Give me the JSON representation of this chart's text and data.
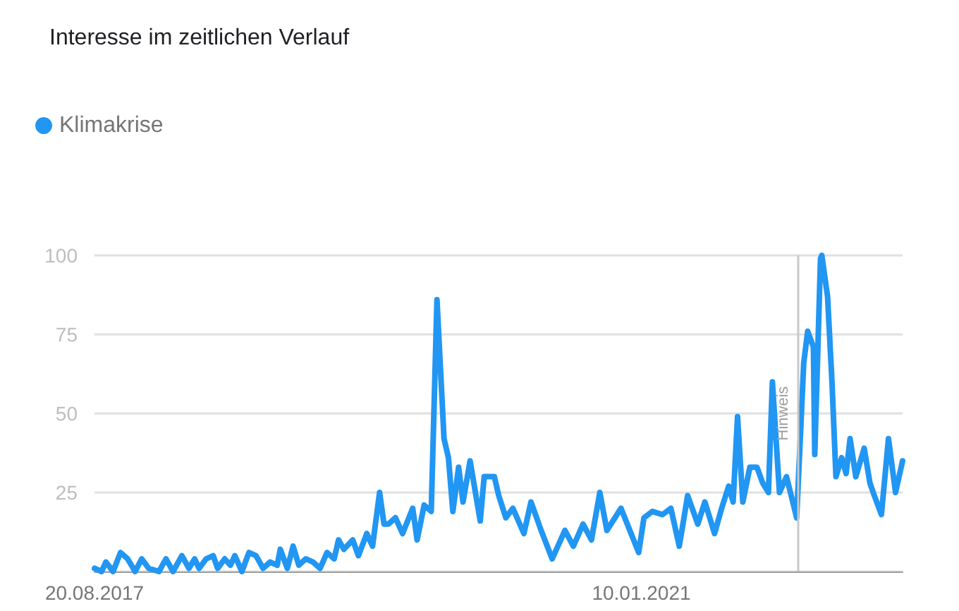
{
  "chart_data": {
    "type": "line",
    "title": "Interesse im zeitlichen Verlauf",
    "x": [
      "2017-08-20",
      "2017-09-05",
      "2017-09-15",
      "2017-10-01",
      "2017-10-18",
      "2017-11-03",
      "2017-11-20",
      "2017-12-05",
      "2017-12-21",
      "2018-01-13",
      "2018-01-29",
      "2018-02-14",
      "2018-03-06",
      "2018-03-22",
      "2018-04-04",
      "2018-04-14",
      "2018-04-30",
      "2018-05-16",
      "2018-05-26",
      "2018-06-11",
      "2018-06-24",
      "2018-07-04",
      "2018-07-20",
      "2018-08-05",
      "2018-08-21",
      "2018-09-06",
      "2018-09-22",
      "2018-10-08",
      "2018-10-15",
      "2018-10-31",
      "2018-11-13",
      "2018-11-26",
      "2018-12-12",
      "2018-12-28",
      "2019-01-13",
      "2019-01-29",
      "2019-02-14",
      "2019-02-24",
      "2019-03-08",
      "2019-03-28",
      "2019-04-10",
      "2019-04-29",
      "2019-05-12",
      "2019-05-28",
      "2019-06-07",
      "2019-06-17",
      "2019-07-03",
      "2019-07-19",
      "2019-08-11",
      "2019-08-21",
      "2019-09-06",
      "2019-09-22",
      "2019-10-05",
      "2019-10-21",
      "2019-10-31",
      "2019-11-10",
      "2019-11-23",
      "2019-12-03",
      "2019-12-19",
      "2020-01-11",
      "2020-01-20",
      "2020-02-12",
      "2020-02-22",
      "2020-03-09",
      "2020-03-25",
      "2020-04-19",
      "2020-05-05",
      "2020-05-28",
      "2020-06-22",
      "2020-07-21",
      "2020-08-09",
      "2020-08-31",
      "2020-09-19",
      "2020-10-08",
      "2020-10-24",
      "2020-11-25",
      "2021-01-04",
      "2021-01-16",
      "2021-02-04",
      "2021-02-27",
      "2021-03-18",
      "2021-04-06",
      "2021-04-25",
      "2021-05-18",
      "2021-06-03",
      "2021-06-25",
      "2021-07-11",
      "2021-07-27",
      "2021-08-06",
      "2021-08-16",
      "2021-08-28",
      "2021-09-13",
      "2021-09-29",
      "2021-10-12",
      "2021-10-25",
      "2021-11-03",
      "2021-11-19",
      "2021-12-05",
      "2021-12-28",
      "2022-01-13",
      "2022-01-22",
      "2022-02-04",
      "2022-02-07",
      "2022-02-20",
      "2022-02-23",
      "2022-03-08",
      "2022-03-18",
      "2022-03-27",
      "2022-04-09",
      "2022-04-19",
      "2022-04-28",
      "2022-05-11",
      "2022-05-30",
      "2022-06-12",
      "2022-06-22",
      "2022-07-08",
      "2022-07-24",
      "2022-08-09",
      "2022-08-25"
    ],
    "series": [
      {
        "name": "Klimakrise",
        "color": "#2196f3",
        "values": [
          1,
          0,
          3,
          0,
          6,
          4,
          0,
          4,
          1,
          0,
          4,
          0,
          5,
          1,
          4,
          1,
          4,
          5,
          1,
          4,
          2,
          5,
          0,
          6,
          5,
          1,
          3,
          2,
          7,
          1,
          8,
          2,
          4,
          3,
          1,
          6,
          4,
          10,
          7,
          10,
          5,
          12,
          8,
          25,
          15,
          15,
          17,
          12,
          20,
          10,
          21,
          19,
          86,
          42,
          36,
          19,
          33,
          22,
          35,
          16,
          30,
          30,
          24,
          17,
          20,
          12,
          22,
          13,
          4,
          13,
          8,
          15,
          10,
          25,
          13,
          20,
          6,
          17,
          19,
          18,
          20,
          8,
          24,
          15,
          22,
          12,
          20,
          27,
          22,
          49,
          22,
          33,
          33,
          28,
          25,
          60,
          25,
          30,
          17,
          66,
          76,
          71,
          37,
          99,
          100,
          87,
          60,
          30,
          36,
          31,
          42,
          30,
          39,
          28,
          24,
          18,
          42,
          25,
          35
        ]
      }
    ],
    "xlim": [
      "2017-08-20",
      "2022-08-25"
    ],
    "xticks": [
      {
        "value": "2017-08-20",
        "label": "20.08.2017"
      },
      {
        "value": "2021-01-10",
        "label": "10.01.2021"
      }
    ],
    "ylim": [
      0,
      100
    ],
    "yticks": [
      {
        "value": 0,
        "label": null
      },
      25,
      50,
      75,
      100
    ],
    "ref_lines": [
      {
        "axis": "x",
        "value": "2022-01-01",
        "label": "Hinweis"
      }
    ],
    "grid": "y",
    "legend": "top left",
    "marker": "none",
    "line_style": "solid"
  }
}
